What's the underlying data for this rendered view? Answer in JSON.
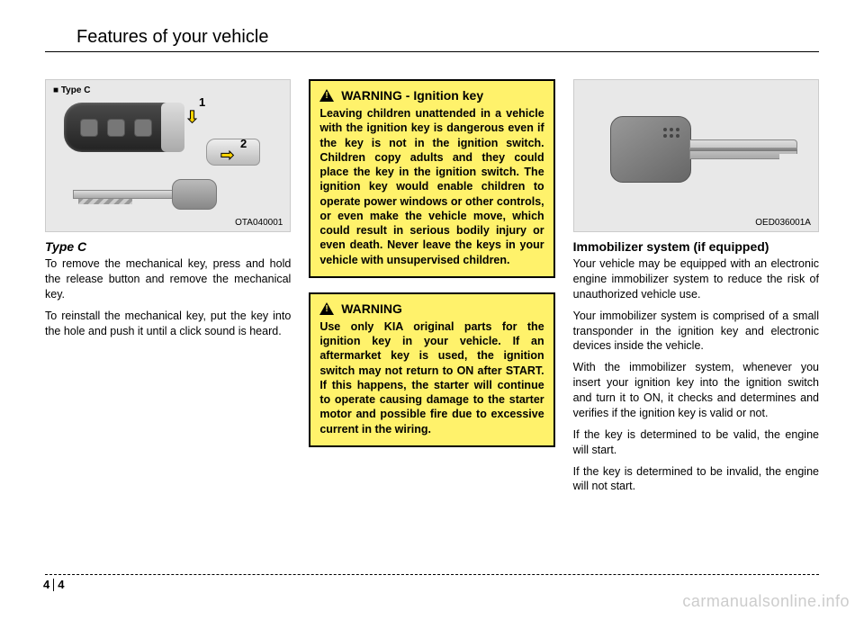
{
  "header": {
    "title": "Features of your vehicle"
  },
  "col1": {
    "fig_label": "■ Type C",
    "fig_code": "OTA040001",
    "callout1": "1",
    "callout2": "2",
    "subhead": "Type C",
    "p1": "To remove the mechanical key, press and hold the release button and remove the mechanical key.",
    "p2": "To reinstall the mechanical key, put the key into the hole and push it until a click sound is heard."
  },
  "col2": {
    "warn1_head": "WARNING - Ignition key",
    "warn1_body": "Leaving children unattended in a vehicle with the ignition key is dangerous even if the key is not in the ignition switch. Children copy adults and they could place the key in the ignition switch. The ignition key would enable children to operate power windows or other controls, or even make the vehicle move, which could result in serious bodily injury or even death. Never leave the keys in your vehicle with unsupervised children.",
    "warn2_head": "WARNING",
    "warn2_body": "Use only KIA original parts for the ignition key in your vehicle.  If an aftermarket key is used, the ignition switch may not return to ON after START.  If this happens, the starter will continue to operate causing damage to the starter motor and possible fire due to excessive current in the wiring."
  },
  "col3": {
    "fig_code": "OED036001A",
    "subhead": "Immobilizer system (if equipped)",
    "p1": "Your vehicle may be equipped with an electronic engine immobilizer system to reduce the risk of unauthorized vehicle use.",
    "p2": "Your immobilizer system is comprised of a small transponder in the ignition key and electronic devices inside the vehicle.",
    "p3": "With the immobilizer system, whenever you insert your ignition key into the ignition switch and turn it to ON, it checks and determines and verifies if the ignition key is valid or not.",
    "p4": "If the key is determined to be valid, the engine will start.",
    "p5": "If the key is determined to be invalid, the engine will not start."
  },
  "footer": {
    "chapter": "4",
    "page": "4"
  },
  "watermark": "carmanualsonline.info",
  "colors": {
    "warn_bg": "#fff26b",
    "fig_bg": "#e8e8e8",
    "text": "#000000",
    "watermark": "#cccccc"
  }
}
